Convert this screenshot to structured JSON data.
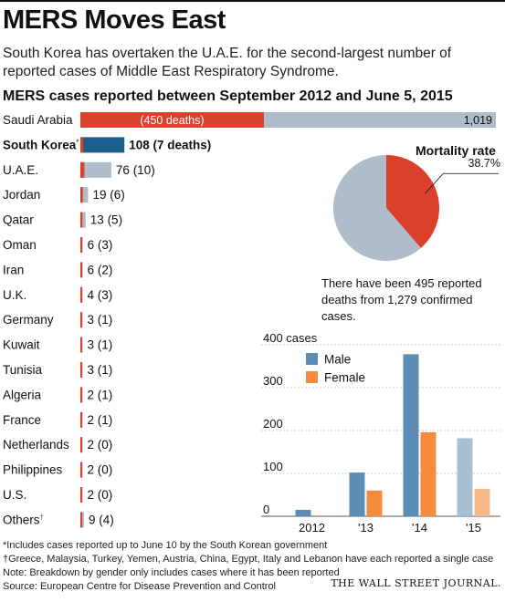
{
  "headline": "MERS Moves East",
  "dek": "South Korea has overtaken the U.A.E. for the second-largest number of reported cases of Middle East Respiratory Syndrome.",
  "chart_data": [
    {
      "type": "bar",
      "title": "MERS cases reported between September 2012 and June 5, 2015",
      "colors": {
        "deaths": "#d9412b",
        "cases": "#aebdc9",
        "highlight": "#1d5f8c"
      },
      "rows": [
        {
          "country": "Saudi Arabia",
          "cases": 1019,
          "deaths": 450,
          "value_label": "1,019",
          "deaths_label": "(450 deaths)"
        },
        {
          "country": "South Korea",
          "footnote_mark": "*",
          "cases": 108,
          "deaths": 7,
          "value_label": "108 (7 deaths)",
          "highlight": true
        },
        {
          "country": "U.A.E.",
          "cases": 76,
          "deaths": 10,
          "value_label": "76 (10)"
        },
        {
          "country": "Jordan",
          "cases": 19,
          "deaths": 6,
          "value_label": "19 (6)"
        },
        {
          "country": "Qatar",
          "cases": 13,
          "deaths": 5,
          "value_label": "13 (5)"
        },
        {
          "country": "Oman",
          "cases": 6,
          "deaths": 3,
          "value_label": "6 (3)"
        },
        {
          "country": "Iran",
          "cases": 6,
          "deaths": 2,
          "value_label": "6 (2)"
        },
        {
          "country": "U.K.",
          "cases": 4,
          "deaths": 3,
          "value_label": "4 (3)"
        },
        {
          "country": "Germany",
          "cases": 3,
          "deaths": 1,
          "value_label": "3 (1)"
        },
        {
          "country": "Kuwait",
          "cases": 3,
          "deaths": 1,
          "value_label": "3 (1)"
        },
        {
          "country": "Tunisia",
          "cases": 3,
          "deaths": 1,
          "value_label": "3 (1)"
        },
        {
          "country": "Algeria",
          "cases": 2,
          "deaths": 1,
          "value_label": "2 (1)"
        },
        {
          "country": "France",
          "cases": 2,
          "deaths": 1,
          "value_label": "2 (1)"
        },
        {
          "country": "Netherlands",
          "cases": 2,
          "deaths": 0,
          "value_label": "2 (0)"
        },
        {
          "country": "Philippines",
          "cases": 2,
          "deaths": 0,
          "value_label": "2 (0)"
        },
        {
          "country": "U.S.",
          "cases": 2,
          "deaths": 0,
          "value_label": "2 (0)"
        },
        {
          "country": "Others",
          "footnote_mark": "†",
          "cases": 9,
          "deaths": 4,
          "value_label": "9 (4)"
        }
      ]
    },
    {
      "type": "pie",
      "title": "Mortality rate",
      "slices": [
        {
          "name": "deaths",
          "value": 38.7,
          "label": "38.7%",
          "color": "#d9412b"
        },
        {
          "name": "survived",
          "value": 61.3,
          "color": "#aebdc9"
        }
      ],
      "note": "There have been 495 reported deaths from 1,279 confirmed cases."
    },
    {
      "type": "bar",
      "categories": [
        "2012",
        "'13",
        "'14",
        "'15"
      ],
      "series": [
        {
          "name": "Male",
          "values": [
            15,
            102,
            378,
            182
          ],
          "color": "#5b8db5",
          "light_color": "#a7bfd2"
        },
        {
          "name": "Female",
          "values": [
            0,
            60,
            196,
            64
          ],
          "color": "#f58b3c",
          "light_color": "#f7b987"
        }
      ],
      "partial_year": "'15",
      "ylim": [
        0,
        400
      ],
      "yticks": [
        "0",
        "100",
        "200",
        "300",
        "400 cases"
      ],
      "ytick_values": [
        0,
        100,
        200,
        300,
        400
      ],
      "grid": true,
      "legend": "top-left"
    }
  ],
  "footnotes": [
    "*Includes cases reported up to June 10 by the South Korean government",
    "†Greece, Malaysia, Turkey, Yemen, Austria, China, Egypt, Italy and Lebanon have each reported a single case",
    "Note: Breakdown by gender only includes cases where it has been reported",
    "Source: European Centre for Disease Prevention and Control"
  ],
  "publisher": "THE WALL STREET JOURNAL."
}
